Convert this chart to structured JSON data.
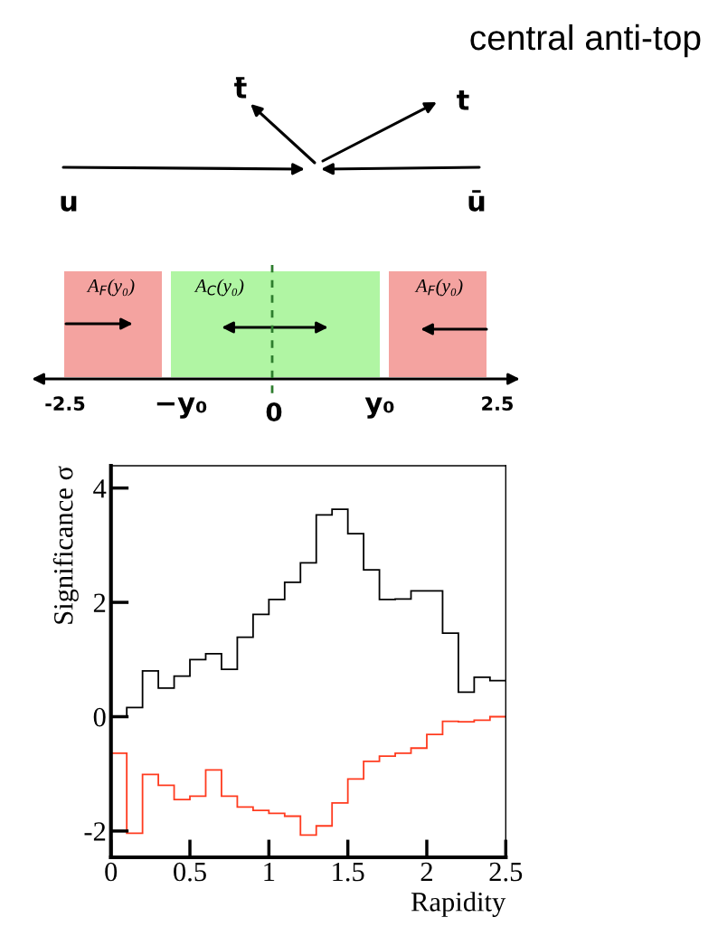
{
  "chart_data": {
    "type": "histogram",
    "title": "central anti-top",
    "xlabel": "Rapidity",
    "ylabel": "Significance σ",
    "bins": [
      0,
      0.1,
      0.2,
      0.3,
      0.4,
      0.5,
      0.6,
      0.7,
      0.8,
      0.9,
      1.0,
      1.1,
      1.2,
      1.3,
      1.4,
      1.5,
      1.6,
      1.7,
      1.8,
      1.9,
      2.0,
      2.1,
      2.2,
      2.3,
      2.4,
      2.5
    ],
    "series": [
      {
        "color": "#000000",
        "values": [
          0.0,
          0.16,
          0.8,
          0.5,
          0.71,
          1.0,
          1.1,
          0.83,
          1.39,
          1.79,
          2.05,
          2.35,
          2.69,
          3.53,
          3.63,
          3.2,
          2.57,
          2.05,
          2.06,
          2.2,
          2.2,
          1.46,
          0.43,
          0.69,
          0.63
        ]
      },
      {
        "color": "#ff3b1f",
        "values": [
          -0.64,
          -2.04,
          -1.01,
          -1.2,
          -1.45,
          -1.39,
          -0.93,
          -1.39,
          -1.58,
          -1.64,
          -1.69,
          -1.74,
          -2.07,
          -1.91,
          -1.51,
          -1.09,
          -0.78,
          -0.69,
          -0.64,
          -0.55,
          -0.31,
          -0.08,
          -0.09,
          -0.06,
          0.0
        ]
      }
    ],
    "xlim": [
      0,
      2.5
    ],
    "xticks": [
      0,
      0.5,
      1,
      1.5,
      2,
      2.5
    ],
    "ylim": [
      -2.46,
      4.39
    ],
    "yticks": [
      -2,
      0,
      2,
      4
    ],
    "grid": false,
    "legend": false,
    "annotations": [
      "t̄",
      "t",
      "u",
      "ū",
      "A$_{F}$(y₀)",
      "A$_{C}$(y₀)",
      "A$_{F}$(y₀)",
      "-2.5",
      "−y₀",
      "0",
      "y₀",
      "2.5"
    ]
  }
}
